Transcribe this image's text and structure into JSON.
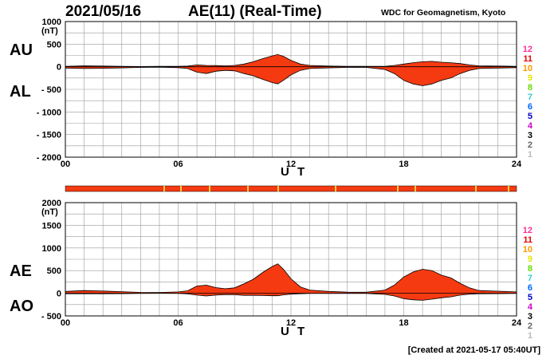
{
  "header": {
    "date": "2021/05/16",
    "title": "AE(11) (Real-Time)",
    "institution": "WDC for Geomagnetism, Kyoto"
  },
  "footer": {
    "created": "[Created at 2021-05-17 05:40UT]"
  },
  "colors": {
    "fill": "#f53a12",
    "edge": "#000000",
    "grid": "#999999",
    "strip_highlight": "#f5d03a"
  },
  "station_legend": [
    {
      "label": "12",
      "color": "#ff3399"
    },
    {
      "label": "11",
      "color": "#e60000"
    },
    {
      "label": "10",
      "color": "#ff9900"
    },
    {
      "label": "9",
      "color": "#e6e600"
    },
    {
      "label": "8",
      "color": "#66dd00"
    },
    {
      "label": "7",
      "color": "#33cccc"
    },
    {
      "label": "6",
      "color": "#0066ff"
    },
    {
      "label": "5",
      "color": "#0000cc"
    },
    {
      "label": "4",
      "color": "#cc00cc"
    },
    {
      "label": "3",
      "color": "#000000"
    },
    {
      "label": "2",
      "color": "#666666"
    },
    {
      "label": "1",
      "color": "#bbbbbb"
    }
  ],
  "chart_data": [
    {
      "type": "area",
      "name": "AU/AL",
      "upper_label": "AU",
      "lower_label": "AL",
      "unit_label": "(nT)",
      "xlabel": "U T",
      "xlim": [
        0,
        24
      ],
      "ylim": [
        -2000,
        1000
      ],
      "y_ticks": [
        1000,
        500,
        0,
        -500,
        -1000,
        -1500,
        -2000
      ],
      "y_tick_labels": [
        "1000",
        "500",
        "0",
        "- 500",
        "- 1000",
        "- 1500",
        "- 2000"
      ],
      "x_ticks": [
        0,
        6,
        12,
        18,
        24
      ],
      "x_tick_labels": [
        "00",
        "06",
        "12",
        "18",
        "24"
      ],
      "series": [
        {
          "name": "AU",
          "x": [
            0,
            1,
            2,
            3,
            4,
            5,
            6,
            6.5,
            7,
            7.5,
            8,
            8.5,
            9,
            9.5,
            10,
            10.5,
            11,
            11.3,
            11.6,
            12,
            12.5,
            13,
            14,
            15,
            16,
            17,
            17.5,
            18,
            18.5,
            19,
            19.5,
            20,
            20.5,
            21,
            21.5,
            22,
            23,
            24
          ],
          "values": [
            10,
            20,
            15,
            10,
            5,
            8,
            10,
            15,
            40,
            30,
            25,
            20,
            30,
            60,
            110,
            180,
            240,
            270,
            230,
            140,
            60,
            30,
            15,
            10,
            8,
            10,
            30,
            60,
            90,
            110,
            120,
            100,
            90,
            70,
            40,
            20,
            15,
            10
          ]
        },
        {
          "name": "AL",
          "x": [
            0,
            1,
            2,
            3,
            4,
            5,
            6,
            6.5,
            7,
            7.5,
            8,
            8.5,
            9,
            9.5,
            10,
            10.5,
            11,
            11.3,
            11.6,
            12,
            12.5,
            13,
            14,
            15,
            16,
            17,
            17.5,
            18,
            18.5,
            19,
            19.5,
            20,
            20.5,
            21,
            21.5,
            22,
            23,
            24
          ],
          "values": [
            -30,
            -40,
            -35,
            -25,
            -15,
            -10,
            -20,
            -40,
            -120,
            -150,
            -100,
            -80,
            -90,
            -150,
            -200,
            -280,
            -350,
            -380,
            -300,
            -180,
            -80,
            -40,
            -25,
            -15,
            -15,
            -60,
            -150,
            -300,
            -380,
            -420,
            -380,
            -300,
            -250,
            -150,
            -80,
            -40,
            -30,
            -20
          ]
        }
      ]
    },
    {
      "type": "area",
      "name": "AE/AO",
      "upper_label": "AE",
      "lower_label": "AO",
      "unit_label": "(nT)",
      "xlabel": "U T",
      "xlim": [
        0,
        24
      ],
      "ylim": [
        -500,
        2000
      ],
      "y_ticks": [
        2000,
        1500,
        1000,
        500,
        0,
        -500
      ],
      "y_tick_labels": [
        "2000",
        "1500",
        "1000",
        "500",
        "0",
        "- 500"
      ],
      "x_ticks": [
        0,
        6,
        12,
        18,
        24
      ],
      "x_tick_labels": [
        "00",
        "06",
        "12",
        "18",
        "24"
      ],
      "series": [
        {
          "name": "AE",
          "x": [
            0,
            1,
            2,
            3,
            4,
            5,
            6,
            6.5,
            7,
            7.5,
            8,
            8.5,
            9,
            9.5,
            10,
            10.5,
            11,
            11.3,
            11.6,
            12,
            12.5,
            13,
            14,
            15,
            16,
            17,
            17.5,
            18,
            18.5,
            19,
            19.5,
            20,
            20.5,
            21,
            21.5,
            22,
            23,
            24
          ],
          "values": [
            40,
            60,
            50,
            35,
            20,
            18,
            30,
            55,
            160,
            180,
            125,
            100,
            120,
            210,
            310,
            460,
            590,
            650,
            530,
            320,
            140,
            70,
            40,
            25,
            23,
            70,
            180,
            360,
            470,
            530,
            500,
            400,
            340,
            220,
            120,
            60,
            45,
            30
          ]
        },
        {
          "name": "AO",
          "x": [
            0,
            1,
            2,
            3,
            4,
            5,
            6,
            6.5,
            7,
            7.5,
            8,
            8.5,
            9,
            9.5,
            10,
            10.5,
            11,
            11.3,
            11.6,
            12,
            12.5,
            13,
            14,
            15,
            16,
            17,
            17.5,
            18,
            18.5,
            19,
            19.5,
            20,
            20.5,
            21,
            21.5,
            22,
            23,
            24
          ],
          "values": [
            -10,
            -10,
            -10,
            -8,
            -5,
            -1,
            -5,
            -12,
            -40,
            -60,
            -38,
            -30,
            -30,
            -45,
            -45,
            -50,
            -55,
            -55,
            -35,
            -20,
            -10,
            -5,
            -5,
            -3,
            -4,
            -25,
            -60,
            -120,
            -145,
            -155,
            -130,
            -100,
            -80,
            -40,
            -20,
            -10,
            -8,
            -5
          ]
        }
      ]
    }
  ]
}
